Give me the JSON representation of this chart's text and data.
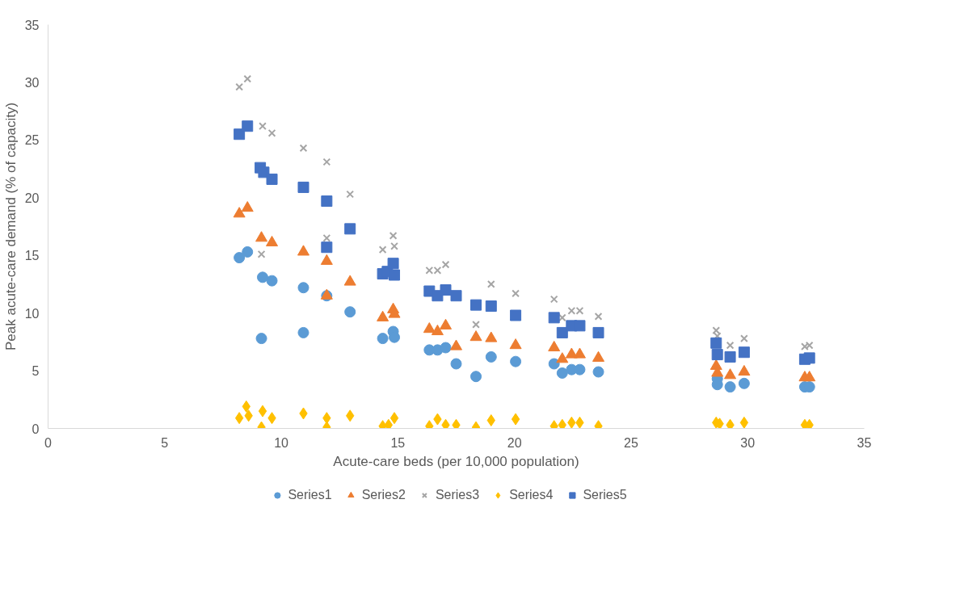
{
  "chart_data": {
    "type": "scatter",
    "xlabel": "Acute-care beds (per 10,000 population)",
    "ylabel": "Peak acute-care demand (% of capacity)",
    "xlim": [
      0,
      35
    ],
    "xticks": [
      0,
      5,
      10,
      15,
      20,
      25,
      30,
      35
    ],
    "ylim": [
      0,
      35
    ],
    "yticks": [
      0,
      5,
      10,
      15,
      20,
      25,
      30,
      35
    ],
    "legend": "bottom",
    "series": [
      {
        "name": "Series1",
        "color": "#5b9bd5",
        "marker": "circle",
        "x": [
          8.2,
          8.55,
          9.15,
          9.2,
          9.6,
          10.95,
          10.95,
          11.95,
          12.95,
          14.35,
          14.8,
          14.85,
          16.35,
          16.7,
          17.05,
          17.5,
          18.35,
          19.0,
          20.05,
          21.7,
          22.05,
          22.45,
          22.8,
          23.6,
          28.7,
          28.7,
          29.25,
          29.85,
          32.45,
          32.65
        ],
        "values": [
          14.8,
          15.3,
          7.8,
          13.1,
          12.8,
          12.2,
          8.3,
          11.5,
          10.1,
          7.8,
          8.4,
          7.9,
          6.8,
          6.8,
          7.0,
          5.6,
          4.5,
          6.2,
          5.8,
          5.6,
          4.8,
          5.1,
          5.1,
          4.9,
          4.3,
          3.8,
          3.6,
          3.9,
          3.6,
          3.6
        ]
      },
      {
        "name": "Series2",
        "color": "#ed7d31",
        "marker": "triangle",
        "x": [
          8.2,
          8.55,
          9.15,
          9.6,
          10.95,
          11.95,
          11.95,
          12.95,
          14.35,
          14.8,
          14.85,
          16.35,
          16.7,
          17.05,
          17.5,
          18.35,
          19.0,
          20.05,
          21.7,
          22.05,
          22.45,
          22.8,
          23.6,
          28.65,
          28.7,
          29.25,
          29.85,
          32.45,
          32.65
        ],
        "values": [
          18.6,
          19.1,
          16.5,
          16.1,
          15.3,
          14.5,
          11.5,
          12.7,
          9.6,
          10.3,
          9.9,
          8.6,
          8.4,
          8.9,
          7.1,
          7.9,
          7.8,
          7.2,
          7.0,
          6.0,
          6.4,
          6.4,
          6.1,
          5.4,
          4.8,
          4.6,
          4.9,
          4.4,
          4.4
        ]
      },
      {
        "name": "Series3",
        "color": "#a5a5a5",
        "marker": "cross",
        "x": [
          8.2,
          8.55,
          9.15,
          9.2,
          9.6,
          10.95,
          11.95,
          11.95,
          12.95,
          14.35,
          14.8,
          14.85,
          16.35,
          16.7,
          17.05,
          18.35,
          19.0,
          20.05,
          21.7,
          22.05,
          22.45,
          22.8,
          23.6,
          28.65,
          28.7,
          29.25,
          29.85,
          32.45,
          32.65
        ],
        "values": [
          29.6,
          30.3,
          15.1,
          26.2,
          25.6,
          24.3,
          23.1,
          16.5,
          20.3,
          15.5,
          16.7,
          15.8,
          13.7,
          13.7,
          14.2,
          9.0,
          12.5,
          11.7,
          11.2,
          9.6,
          10.2,
          10.2,
          9.7,
          8.5,
          8.0,
          7.2,
          7.8,
          7.1,
          7.2
        ]
      },
      {
        "name": "Series4",
        "color": "#ffc000",
        "marker": "diamond",
        "x": [
          8.2,
          8.5,
          8.6,
          9.2,
          9.15,
          9.6,
          10.95,
          11.95,
          11.95,
          12.95,
          14.35,
          14.6,
          14.85,
          16.35,
          16.7,
          17.05,
          17.5,
          18.35,
          19.0,
          20.05,
          21.7,
          22.05,
          22.45,
          22.8,
          23.6,
          28.65,
          28.8,
          29.25,
          29.85,
          32.45,
          32.65
        ],
        "values": [
          0.9,
          1.9,
          1.1,
          1.5,
          0.1,
          0.9,
          1.3,
          0.9,
          0.1,
          1.1,
          0.2,
          0.3,
          0.9,
          0.2,
          0.8,
          0.3,
          0.3,
          0.1,
          0.7,
          0.8,
          0.2,
          0.3,
          0.5,
          0.5,
          0.2,
          0.5,
          0.4,
          0.3,
          0.5,
          0.3,
          0.3
        ]
      },
      {
        "name": "Series5",
        "color": "#4472c4",
        "marker": "square",
        "x": [
          8.2,
          8.55,
          9.1,
          9.25,
          9.6,
          10.95,
          11.95,
          11.95,
          12.95,
          14.35,
          14.55,
          14.8,
          14.85,
          16.35,
          16.7,
          17.05,
          17.5,
          18.35,
          19.0,
          20.05,
          21.7,
          22.05,
          22.45,
          22.8,
          23.6,
          28.65,
          28.7,
          29.25,
          29.85,
          32.45,
          32.65
        ],
        "values": [
          25.5,
          26.2,
          22.6,
          22.2,
          21.6,
          20.9,
          19.7,
          15.7,
          17.3,
          13.4,
          13.6,
          14.3,
          13.3,
          11.9,
          11.5,
          12.0,
          11.5,
          10.7,
          10.6,
          9.8,
          9.6,
          8.3,
          8.9,
          8.9,
          8.3,
          7.4,
          6.4,
          6.2,
          6.6,
          6.0,
          6.1
        ]
      }
    ]
  }
}
